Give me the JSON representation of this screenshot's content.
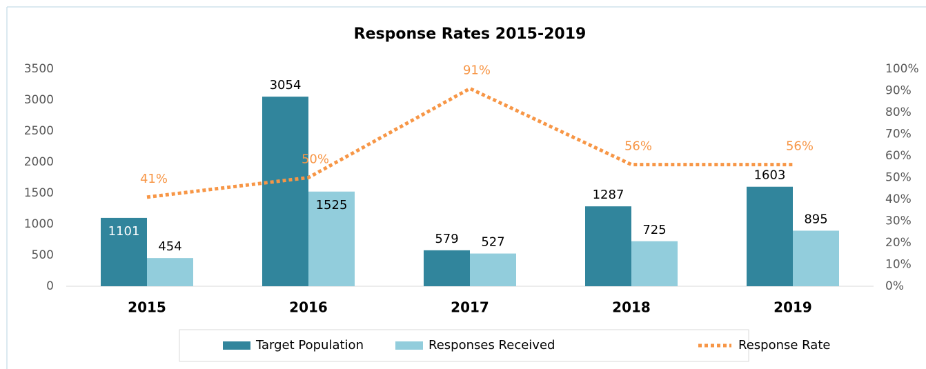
{
  "chart_data": {
    "type": "bar",
    "title": "Response Rates 2015-2019",
    "categories": [
      "2015",
      "2016",
      "2017",
      "2018",
      "2019"
    ],
    "series": [
      {
        "name": "Target Population",
        "color": "#31859c",
        "values": [
          1101,
          3054,
          579,
          1287,
          1603
        ]
      },
      {
        "name": "Responses Received",
        "color": "#92cddc",
        "values": [
          454,
          1525,
          527,
          725,
          895
        ]
      },
      {
        "name": "Response Rate",
        "color": "#f79646",
        "type": "line",
        "axis": "y2",
        "values": [
          41,
          50,
          91,
          56,
          56
        ],
        "value_labels": [
          "41%",
          "50%",
          "91%",
          "56%",
          "56%"
        ]
      }
    ],
    "ylim": [
      0,
      3500
    ],
    "yticks": [
      0,
      500,
      1000,
      1500,
      2000,
      2500,
      3000,
      3500
    ],
    "y2lim": [
      0,
      100
    ],
    "y2ticks": [
      {
        "value": 0,
        "label": "0%"
      },
      {
        "value": 10,
        "label": "10%"
      },
      {
        "value": 20,
        "label": "20%"
      },
      {
        "value": 30,
        "label": "30%"
      },
      {
        "value": 40,
        "label": "40%"
      },
      {
        "value": 50,
        "label": "50%"
      },
      {
        "value": 60,
        "label": "60%"
      },
      {
        "value": 70,
        "label": "70%"
      },
      {
        "value": 80,
        "label": "80%"
      },
      {
        "value": 90,
        "label": "90%"
      },
      {
        "value": 100,
        "label": "100%"
      }
    ],
    "grid": false,
    "legend": "bottom"
  }
}
